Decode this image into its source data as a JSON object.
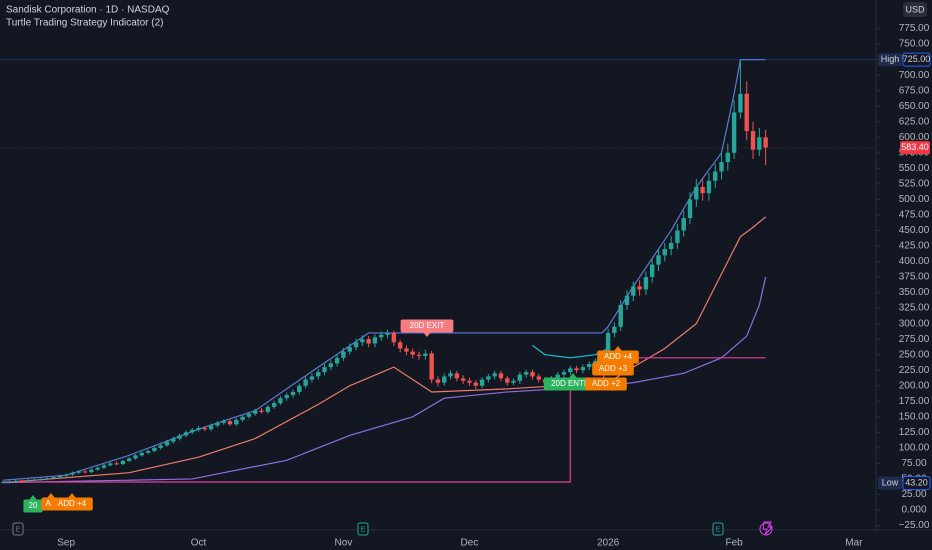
{
  "chart_data": {
    "type": "candlestick",
    "title": "Sandisk Corporation · 1D · NASDAQ",
    "subtitle": "Turtle Trading Strategy Indicator (2)",
    "currency": "USD",
    "up_color": "#26a69a",
    "down_color": "#ef5350",
    "ylim": [
      -29,
      821
    ],
    "yticks": [
      {
        "value": -25,
        "label": "−25.00"
      },
      {
        "value": 0,
        "label": "0.000"
      },
      {
        "value": 25,
        "label": "25.00"
      },
      {
        "value": 50,
        "label": "50.00"
      },
      {
        "value": 75,
        "label": "75.00"
      },
      {
        "value": 100,
        "label": "100.00"
      },
      {
        "value": 125,
        "label": "125.00"
      },
      {
        "value": 150,
        "label": "150.00"
      },
      {
        "value": 175,
        "label": "175.00"
      },
      {
        "value": 200,
        "label": "200.00"
      },
      {
        "value": 225,
        "label": "225.00"
      },
      {
        "value": 250,
        "label": "250.00"
      },
      {
        "value": 275,
        "label": "275.00"
      },
      {
        "value": 300,
        "label": "300.00"
      },
      {
        "value": 325,
        "label": "325.00"
      },
      {
        "value": 350,
        "label": "350.00"
      },
      {
        "value": 375,
        "label": "375.00"
      },
      {
        "value": 400,
        "label": "400.00"
      },
      {
        "value": 425,
        "label": "425.00"
      },
      {
        "value": 450,
        "label": "450.00"
      },
      {
        "value": 475,
        "label": "475.00"
      },
      {
        "value": 500,
        "label": "500.00"
      },
      {
        "value": 525,
        "label": "525.00"
      },
      {
        "value": 550,
        "label": "550.00"
      },
      {
        "value": 575,
        "label": "575.00"
      },
      {
        "value": 600,
        "label": "600.00"
      },
      {
        "value": 625,
        "label": "625.00"
      },
      {
        "value": 650,
        "label": "650.00"
      },
      {
        "value": 675,
        "label": "675.00"
      },
      {
        "value": 700,
        "label": "700.00"
      },
      {
        "value": 725,
        "label": "725.00"
      },
      {
        "value": 750,
        "label": "750.00"
      },
      {
        "value": 775,
        "label": "775.00"
      }
    ],
    "categories": [
      null,
      null,
      null,
      null,
      null,
      null,
      null,
      null,
      null,
      null,
      "Sep",
      null,
      null,
      null,
      null,
      null,
      null,
      null,
      null,
      null,
      null,
      null,
      null,
      null,
      null,
      null,
      null,
      null,
      null,
      null,
      null,
      "Oct",
      null,
      null,
      null,
      null,
      null,
      null,
      null,
      null,
      null,
      null,
      null,
      null,
      null,
      null,
      null,
      null,
      null,
      null,
      null,
      null,
      null,
      null,
      "Nov",
      null,
      null,
      null,
      null,
      null,
      null,
      null,
      null,
      null,
      null,
      null,
      null,
      null,
      null,
      null,
      null,
      null,
      null,
      null,
      "Dec",
      null,
      null,
      null,
      null,
      null,
      null,
      null,
      null,
      null,
      null,
      null,
      null,
      null,
      null,
      null,
      null,
      null,
      null,
      null,
      null,
      null,
      "2026",
      null,
      null,
      null,
      null,
      null,
      null,
      null,
      null,
      null,
      null,
      null,
      null,
      null,
      null,
      null,
      null,
      null,
      null,
      null,
      "Feb",
      null,
      null,
      null,
      null,
      null,
      null,
      null,
      null,
      null,
      null,
      null,
      null,
      null,
      null,
      null,
      null,
      null,
      null,
      "Mar"
    ],
    "open": [
      44,
      45,
      46,
      47,
      46,
      48,
      49,
      50,
      51,
      53,
      55,
      57,
      60,
      62,
      61,
      65,
      68,
      72,
      75,
      74,
      79,
      83,
      88,
      92,
      95,
      100,
      104,
      110,
      115,
      120,
      125,
      129,
      132,
      130,
      136,
      140,
      143,
      138,
      145,
      150,
      155,
      160,
      158,
      166,
      172,
      180,
      185,
      190,
      200,
      210,
      215,
      222,
      230,
      236,
      245,
      255,
      262,
      270,
      275,
      268,
      278,
      282,
      285,
      270,
      260,
      255,
      250,
      248,
      252,
      210,
      205,
      215,
      220,
      212,
      208,
      205,
      200,
      210,
      215,
      220,
      212,
      205,
      208,
      218,
      222,
      215,
      210,
      205,
      212,
      218,
      222,
      228,
      225,
      230,
      235,
      240,
      245,
      285,
      295,
      330,
      345,
      360,
      355,
      375,
      395,
      410,
      420,
      430,
      450,
      470,
      500,
      520,
      510,
      530,
      545,
      560,
      575,
      640,
      670,
      610,
      580,
      600,
      null,
      null,
      null,
      null,
      null,
      null,
      null,
      null,
      null,
      null,
      null,
      null,
      null,
      null
    ],
    "high": [
      47,
      48,
      49,
      49,
      50,
      51,
      52,
      53,
      55,
      57,
      59,
      62,
      64,
      64,
      67,
      70,
      74,
      77,
      78,
      81,
      85,
      90,
      94,
      97,
      103,
      107,
      113,
      118,
      123,
      128,
      132,
      135,
      135,
      139,
      143,
      146,
      146,
      148,
      153,
      158,
      163,
      164,
      169,
      176,
      184,
      189,
      194,
      204,
      215,
      220,
      227,
      235,
      241,
      250,
      261,
      268,
      276,
      281,
      280,
      283,
      287,
      290,
      289,
      274,
      265,
      260,
      255,
      258,
      256,
      215,
      220,
      225,
      224,
      217,
      213,
      209,
      214,
      219,
      224,
      224,
      216,
      212,
      222,
      226,
      226,
      219,
      214,
      216,
      222,
      226,
      232,
      232,
      234,
      239,
      244,
      249,
      292,
      302,
      338,
      354,
      368,
      370,
      384,
      405,
      420,
      430,
      441,
      461,
      482,
      512,
      533,
      532,
      543,
      558,
      574,
      590,
      660,
      725,
      690,
      625,
      615,
      612,
      null,
      null,
      null,
      null,
      null,
      null,
      null,
      null,
      null,
      null,
      null,
      null,
      null,
      null
    ],
    "low": [
      43.2,
      43,
      44,
      44,
      45,
      46,
      47,
      48,
      49,
      51,
      53,
      55,
      58,
      59,
      59,
      63,
      66,
      70,
      72,
      72,
      77,
      81,
      86,
      90,
      93,
      97,
      102,
      107,
      112,
      117,
      122,
      126,
      127,
      127,
      133,
      137,
      135,
      135,
      142,
      147,
      152,
      155,
      155,
      163,
      169,
      176,
      181,
      186,
      196,
      205,
      210,
      217,
      225,
      231,
      240,
      250,
      257,
      264,
      262,
      262,
      272,
      276,
      264,
      254,
      249,
      244,
      242,
      242,
      204,
      199,
      200,
      210,
      207,
      203,
      200,
      195,
      196,
      205,
      210,
      207,
      200,
      201,
      203,
      213,
      210,
      205,
      200,
      200,
      207,
      213,
      217,
      220,
      220,
      225,
      230,
      235,
      240,
      278,
      288,
      322,
      336,
      345,
      346,
      366,
      385,
      400,
      410,
      420,
      440,
      460,
      488,
      498,
      498,
      518,
      532,
      546,
      565,
      630,
      595,
      565,
      570,
      555,
      null,
      null,
      null,
      null,
      null,
      null,
      null,
      null,
      null,
      null,
      null,
      null,
      null,
      null
    ],
    "close": [
      45,
      46,
      47,
      46,
      48,
      49,
      50,
      51,
      53,
      55,
      57,
      60,
      62,
      61,
      65,
      68,
      72,
      75,
      74,
      79,
      83,
      88,
      92,
      95,
      100,
      104,
      110,
      115,
      120,
      125,
      129,
      132,
      130,
      136,
      140,
      143,
      138,
      145,
      150,
      155,
      160,
      158,
      166,
      172,
      180,
      185,
      190,
      200,
      210,
      215,
      222,
      230,
      236,
      245,
      255,
      262,
      270,
      275,
      268,
      278,
      282,
      285,
      270,
      260,
      255,
      250,
      248,
      252,
      210,
      205,
      215,
      220,
      212,
      208,
      205,
      200,
      210,
      215,
      220,
      212,
      205,
      208,
      218,
      222,
      215,
      210,
      205,
      212,
      218,
      222,
      228,
      225,
      230,
      235,
      240,
      245,
      285,
      295,
      330,
      345,
      360,
      355,
      375,
      395,
      410,
      420,
      430,
      450,
      470,
      500,
      520,
      510,
      530,
      545,
      560,
      575,
      640,
      670,
      610,
      580,
      600,
      583.4,
      null,
      null,
      null,
      null,
      null,
      null,
      null,
      null,
      null,
      null,
      null,
      null,
      null,
      null
    ],
    "lines": [
      {
        "color": "#5b7bd5",
        "x": [
          0,
          10,
          20,
          31,
          40,
          50,
          58,
          95,
          96,
          100,
          106,
          110,
          114,
          116,
          117,
          121
        ],
        "values": [
          48,
          56,
          88,
          130,
          160,
          230,
          285,
          285,
          295,
          360,
          450,
          520,
          575,
          670,
          725,
          725
        ]
      },
      {
        "color": "#22c3d6",
        "x": [
          84,
          86,
          90,
          94,
          96
        ],
        "values": [
          265,
          250,
          245,
          250,
          260
        ]
      },
      {
        "color": "#f07a6a",
        "x": [
          0,
          20,
          31,
          40,
          50,
          55,
          62,
          68,
          80,
          96,
          100,
          105,
          110,
          112,
          115,
          117,
          119,
          121
        ],
        "values": [
          44,
          60,
          85,
          115,
          170,
          200,
          230,
          190,
          195,
          205,
          230,
          260,
          300,
          340,
          400,
          440,
          455,
          472
        ]
      },
      {
        "color": "#8f6fe0",
        "x": [
          0,
          30,
          45,
          55,
          65,
          70,
          80,
          96,
          100,
          108,
          114,
          118,
          120,
          121
        ],
        "values": [
          44,
          50,
          80,
          120,
          150,
          180,
          190,
          200,
          205,
          220,
          245,
          280,
          330,
          375
        ]
      },
      {
        "color": "#e0409a",
        "x": [
          0,
          90,
          90,
          95,
          96,
          121
        ],
        "values": [
          45,
          45,
          193,
          200,
          245,
          245
        ]
      }
    ],
    "annotations": [
      {
        "text": "20D EXIT",
        "color": "#f77c80"
      },
      {
        "text": "ADD +4",
        "color": "#f57c00"
      },
      {
        "text": "ADD +3",
        "color": "#f57c00"
      },
      {
        "text": "20D ENTRY",
        "color": "#2db35e"
      },
      {
        "text": "ADD +2",
        "color": "#f57c00"
      },
      {
        "text": "20",
        "color": "#2db35e"
      },
      {
        "text": "AC",
        "color": "#f57c00"
      },
      {
        "text": "ADD +4",
        "color": "#f57c00"
      }
    ],
    "price_labels": [
      {
        "name": "High",
        "value": 725,
        "label": "725.00",
        "color": "#2962ff"
      },
      {
        "value": 583.4,
        "label": "583.40",
        "color": "#f23645"
      },
      {
        "name": "Low",
        "value": 43.2,
        "label": "43.20",
        "color": "#2962ff"
      }
    ],
    "events": [
      "E",
      "E",
      "E"
    ]
  }
}
